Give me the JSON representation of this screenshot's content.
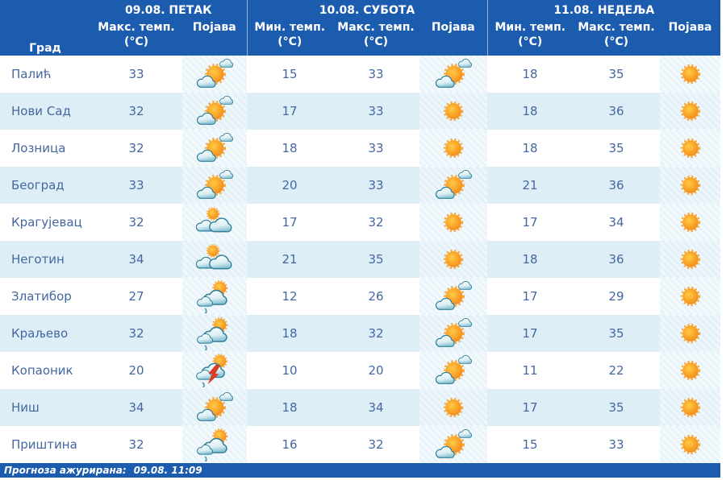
{
  "header": {
    "city_label": "Град",
    "days": [
      {
        "date": "09.08. ПЕТАК",
        "cols": [
          {
            "label": "Макс. темп.",
            "unit": "(°C)"
          },
          {
            "label": "Појава",
            "unit": ""
          }
        ]
      },
      {
        "date": "10.08. СУБОТА",
        "cols": [
          {
            "label": "Мин. темп.",
            "unit": "(°C)"
          },
          {
            "label": "Макс. темп.",
            "unit": "(°C)"
          },
          {
            "label": "Појава",
            "unit": ""
          }
        ]
      },
      {
        "date": "11.08. НЕДЕЉА",
        "cols": [
          {
            "label": "Мин. темп.",
            "unit": "(°C)"
          },
          {
            "label": "Макс. темп.",
            "unit": "(°C)"
          },
          {
            "label": "Појава",
            "unit": ""
          }
        ]
      }
    ]
  },
  "rows": [
    {
      "city": "Палић",
      "friday": {
        "max": 33,
        "icon": "partly-cloudy"
      },
      "saturday": {
        "min": 15,
        "max": 33,
        "icon": "partly-cloudy"
      },
      "sunday": {
        "min": 18,
        "max": 35,
        "icon": "sunny"
      }
    },
    {
      "city": "Нови Сад",
      "friday": {
        "max": 32,
        "icon": "partly-cloudy"
      },
      "saturday": {
        "min": 17,
        "max": 33,
        "icon": "sunny"
      },
      "sunday": {
        "min": 18,
        "max": 36,
        "icon": "sunny"
      }
    },
    {
      "city": "Лозница",
      "friday": {
        "max": 32,
        "icon": "partly-cloudy"
      },
      "saturday": {
        "min": 18,
        "max": 33,
        "icon": "sunny"
      },
      "sunday": {
        "min": 18,
        "max": 35,
        "icon": "sunny"
      }
    },
    {
      "city": "Београд",
      "friday": {
        "max": 33,
        "icon": "partly-cloudy"
      },
      "saturday": {
        "min": 20,
        "max": 33,
        "icon": "partly-cloudy"
      },
      "sunday": {
        "min": 21,
        "max": 36,
        "icon": "sunny"
      }
    },
    {
      "city": "Крагујевац",
      "friday": {
        "max": 32,
        "icon": "mostly-cloudy"
      },
      "saturday": {
        "min": 17,
        "max": 32,
        "icon": "sunny"
      },
      "sunday": {
        "min": 17,
        "max": 34,
        "icon": "sunny"
      }
    },
    {
      "city": "Неготин",
      "friday": {
        "max": 34,
        "icon": "mostly-cloudy"
      },
      "saturday": {
        "min": 21,
        "max": 35,
        "icon": "sunny"
      },
      "sunday": {
        "min": 18,
        "max": 36,
        "icon": "sunny"
      }
    },
    {
      "city": "Златибор",
      "friday": {
        "max": 27,
        "icon": "light-rain"
      },
      "saturday": {
        "min": 12,
        "max": 26,
        "icon": "partly-cloudy"
      },
      "sunday": {
        "min": 17,
        "max": 29,
        "icon": "sunny"
      }
    },
    {
      "city": "Краљево",
      "friday": {
        "max": 32,
        "icon": "light-rain"
      },
      "saturday": {
        "min": 18,
        "max": 32,
        "icon": "partly-cloudy"
      },
      "sunday": {
        "min": 17,
        "max": 35,
        "icon": "sunny"
      }
    },
    {
      "city": "Копаоник",
      "friday": {
        "max": 20,
        "icon": "thunderstorm"
      },
      "saturday": {
        "min": 10,
        "max": 20,
        "icon": "partly-cloudy"
      },
      "sunday": {
        "min": 11,
        "max": 22,
        "icon": "sunny"
      }
    },
    {
      "city": "Ниш",
      "friday": {
        "max": 34,
        "icon": "partly-cloudy"
      },
      "saturday": {
        "min": 18,
        "max": 34,
        "icon": "sunny"
      },
      "sunday": {
        "min": 17,
        "max": 35,
        "icon": "sunny"
      }
    },
    {
      "city": "Приштина",
      "friday": {
        "max": 32,
        "icon": "light-rain"
      },
      "saturday": {
        "min": 16,
        "max": 32,
        "icon": "partly-cloudy"
      },
      "sunday": {
        "min": 15,
        "max": 33,
        "icon": "sunny"
      }
    }
  ],
  "footer": {
    "label": "Прогноза ажурирана:",
    "value": "09.08. 11:09"
  },
  "colors": {
    "header_bg": "#1C5CAE",
    "row_alt_bg": "#DEEEF7",
    "appearance_col_bg": "#E8F3FA",
    "text_blue": "#44679F",
    "sun_orange": "#F7941E",
    "cloud_outline": "#2E7D99",
    "lightning_red": "#DA3B26"
  }
}
